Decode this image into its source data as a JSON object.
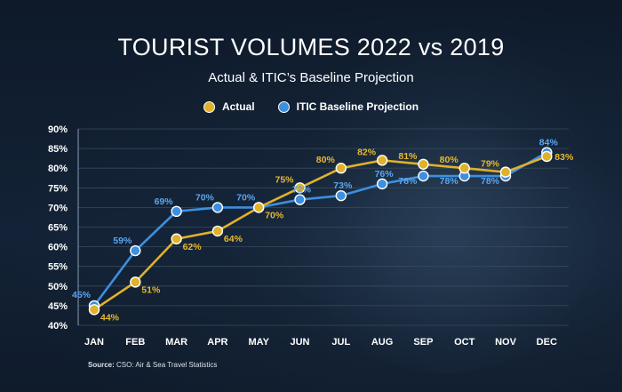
{
  "header": {
    "title": "TOURIST VOLUMES 2022 vs 2019",
    "subtitle": "Actual & ITIC’s Baseline Projection"
  },
  "source": {
    "label": "Source:",
    "text": "CSO: Air & Sea Travel Statistics"
  },
  "colors": {
    "actual": "#e0b12b",
    "projection": "#3d8fe0",
    "actual_label": "#e8b830",
    "projection_label": "#5aa6f0",
    "grid": "#3a4a5c",
    "axis_text": "#ffffff"
  },
  "chart_data": {
    "type": "line",
    "title": "TOURIST VOLUMES 2022 vs 2019",
    "subtitle": "Actual & ITIC’s Baseline Projection",
    "categories": [
      "JAN",
      "FEB",
      "MAR",
      "APR",
      "MAY",
      "JUN",
      "JUL",
      "AUG",
      "SEP",
      "OCT",
      "NOV",
      "DEC"
    ],
    "yticks": [
      "40%",
      "45%",
      "50%",
      "55%",
      "60%",
      "65%",
      "70%",
      "75%",
      "80%",
      "85%",
      "90%"
    ],
    "ylim": [
      40,
      90
    ],
    "grid": true,
    "legend_position": "top-center",
    "series": [
      {
        "name": "Actual",
        "values": [
          44,
          51,
          62,
          64,
          70,
          75,
          80,
          82,
          81,
          80,
          79,
          83
        ],
        "labels": [
          "44%",
          "51%",
          "62%",
          "64%",
          "70%",
          "75%",
          "80%",
          "82%",
          "81%",
          "80%",
          "79%",
          "83%"
        ]
      },
      {
        "name": "ITIC Baseline Projection",
        "values": [
          45,
          59,
          69,
          70,
          70,
          72,
          73,
          76,
          78,
          78,
          78,
          84
        ],
        "labels": [
          "45%",
          "59%",
          "69%",
          "70%",
          "70%",
          "72%",
          "73%",
          "76%",
          "78%",
          "78%",
          "78%",
          "84%"
        ]
      }
    ]
  }
}
